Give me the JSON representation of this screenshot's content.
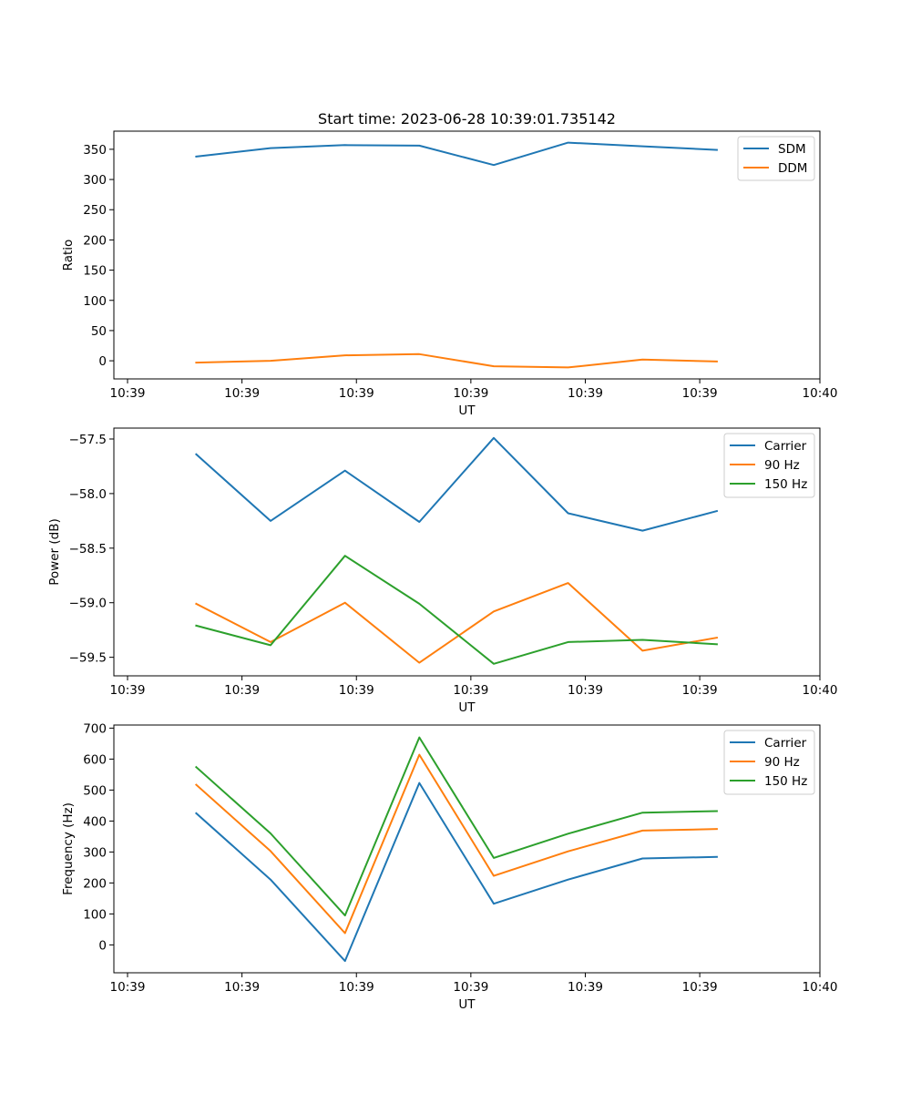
{
  "title": "Start time: 2023-06-28 10:39:01.735142",
  "colors": {
    "blue": "#1f77b4",
    "orange": "#ff7f0e",
    "green": "#2ca02c"
  },
  "chart_data": [
    {
      "type": "line",
      "xlabel": "UT",
      "ylabel": "Ratio",
      "xticks": [
        "10:39",
        "10:39",
        "10:39",
        "10:39",
        "10:39",
        "10:39",
        "10:40"
      ],
      "yticks": [
        "0",
        "50",
        "100",
        "150",
        "200",
        "250",
        "300",
        "350"
      ],
      "ylim": [
        -30,
        380
      ],
      "legend_position": "top-right",
      "x_seconds": [
        2.2,
        3.5,
        4.8,
        6.1,
        7.4,
        8.7,
        10.0,
        11.3
      ],
      "series": [
        {
          "name": "SDM",
          "color": "#1f77b4",
          "values": [
            338,
            352,
            357,
            356,
            324,
            361,
            355,
            349
          ]
        },
        {
          "name": "DDM",
          "color": "#ff7f0e",
          "values": [
            -3,
            0,
            9,
            11,
            -9,
            -11,
            2,
            -1
          ]
        }
      ]
    },
    {
      "type": "line",
      "xlabel": "UT",
      "ylabel": "Power (dB)",
      "xticks": [
        "10:39",
        "10:39",
        "10:39",
        "10:39",
        "10:39",
        "10:39",
        "10:40"
      ],
      "yticks": [
        "−57.5",
        "−58.0",
        "−58.5",
        "−59.0",
        "−59.5"
      ],
      "ylim": [
        -59.67,
        -57.4
      ],
      "legend_position": "top-right",
      "x_seconds": [
        2.2,
        3.5,
        4.8,
        6.1,
        7.4,
        8.7,
        10.0,
        11.3
      ],
      "series": [
        {
          "name": "Carrier",
          "color": "#1f77b4",
          "values": [
            -57.64,
            -58.25,
            -57.79,
            -58.26,
            -57.49,
            -58.18,
            -58.34,
            -58.16
          ]
        },
        {
          "name": "90 Hz",
          "color": "#ff7f0e",
          "values": [
            -59.01,
            -59.36,
            -59.0,
            -59.55,
            -59.08,
            -58.82,
            -59.44,
            -59.32
          ]
        },
        {
          "name": "150 Hz",
          "color": "#2ca02c",
          "values": [
            -59.21,
            -59.39,
            -58.57,
            -59.01,
            -59.56,
            -59.36,
            -59.34,
            -59.38
          ]
        }
      ]
    },
    {
      "type": "line",
      "xlabel": "UT",
      "ylabel": "Frequency (Hz)",
      "xticks": [
        "10:39",
        "10:39",
        "10:39",
        "10:39",
        "10:39",
        "10:39",
        "10:40"
      ],
      "yticks": [
        "0",
        "100",
        "200",
        "300",
        "400",
        "500",
        "600",
        "700"
      ],
      "ylim": [
        -90,
        710
      ],
      "legend_position": "top-right",
      "x_seconds": [
        2.2,
        3.5,
        4.8,
        6.1,
        7.4,
        8.7,
        10.0,
        11.3
      ],
      "series": [
        {
          "name": "Carrier",
          "color": "#1f77b4",
          "values": [
            425,
            211,
            -52,
            523,
            133,
            211,
            279,
            284
          ]
        },
        {
          "name": "90 Hz",
          "color": "#ff7f0e",
          "values": [
            517,
            303,
            38,
            614,
            223,
            302,
            369,
            374
          ]
        },
        {
          "name": "150 Hz",
          "color": "#2ca02c",
          "values": [
            574,
            360,
            95,
            670,
            281,
            359,
            427,
            432
          ]
        }
      ]
    }
  ]
}
